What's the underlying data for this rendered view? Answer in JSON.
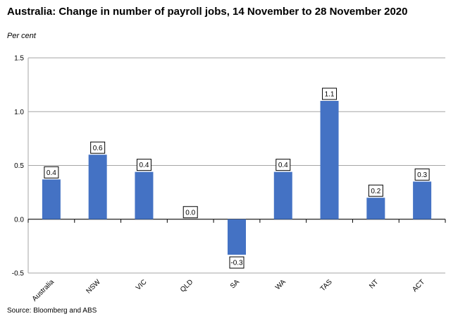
{
  "title": "Australia: Change in number of payroll jobs, 14 November to 28 November 2020",
  "unit_label": "Per cent",
  "source": "Source: Bloomberg and ABS",
  "chart_data": {
    "type": "bar",
    "categories": [
      "Australia",
      "NSW",
      "VIC",
      "QLD",
      "SA",
      "WA",
      "TAS",
      "NT",
      "ACT"
    ],
    "values": [
      0.37,
      0.6,
      0.44,
      0.0,
      -0.33,
      0.44,
      1.1,
      0.2,
      0.35
    ],
    "data_labels": [
      "0.4",
      "0.6",
      "0.4",
      "0.0",
      "-0.3",
      "0.4",
      "1.1",
      "0.2",
      "0.3"
    ],
    "ylim": [
      -0.5,
      1.5
    ],
    "yticks": [
      -0.5,
      0.0,
      0.5,
      1.0,
      1.5
    ],
    "ytick_labels": [
      "-0.5",
      "0.0",
      "0.5",
      "1.0",
      "1.5"
    ],
    "ylabel": "Per cent",
    "bar_color": "#4472C4",
    "grid": true,
    "legend": "none"
  }
}
